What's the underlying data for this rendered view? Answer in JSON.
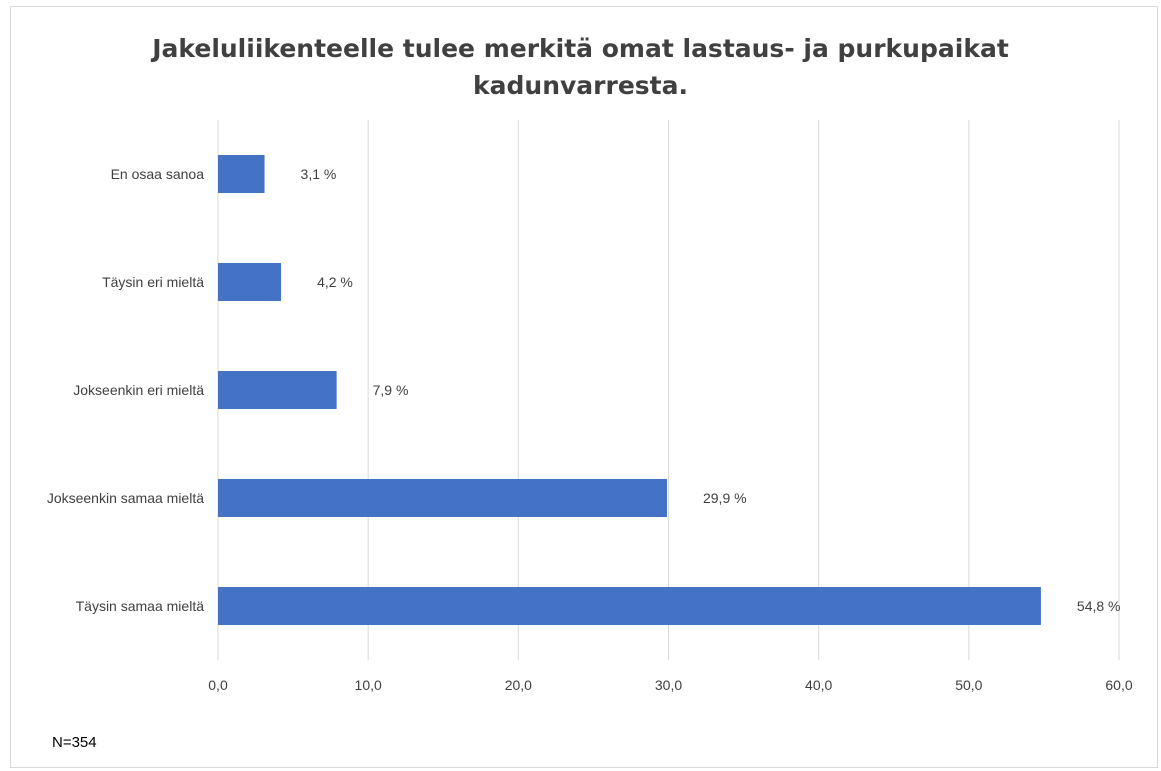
{
  "chart_data": {
    "type": "bar",
    "orientation": "horizontal",
    "title_lines": [
      "Jakeluliikenteelle tulee merkitä omat lastaus- ja purkupaikat",
      "kadunvarresta."
    ],
    "categories": [
      "En osaa sanoa",
      "Täysin eri mieltä",
      "Jokseenkin eri mieltä",
      "Jokseenkin samaa mieltä",
      "Täysin samaa mieltä"
    ],
    "values": [
      3.1,
      4.2,
      7.9,
      29.9,
      54.8
    ],
    "data_labels": [
      "3,1 %",
      "4,2 %",
      "7,9 %",
      "29,9 %",
      "54,8 %"
    ],
    "xlim": [
      0,
      60
    ],
    "x_ticks": [
      0,
      10,
      20,
      30,
      40,
      50,
      60
    ],
    "x_tick_labels": [
      "0,0",
      "10,0",
      "20,0",
      "30,0",
      "40,0",
      "50,0",
      "60,0"
    ],
    "grid": true,
    "bar_color": "#4472c4",
    "grid_color": "#d9d9d9"
  },
  "footnote": "N=354"
}
